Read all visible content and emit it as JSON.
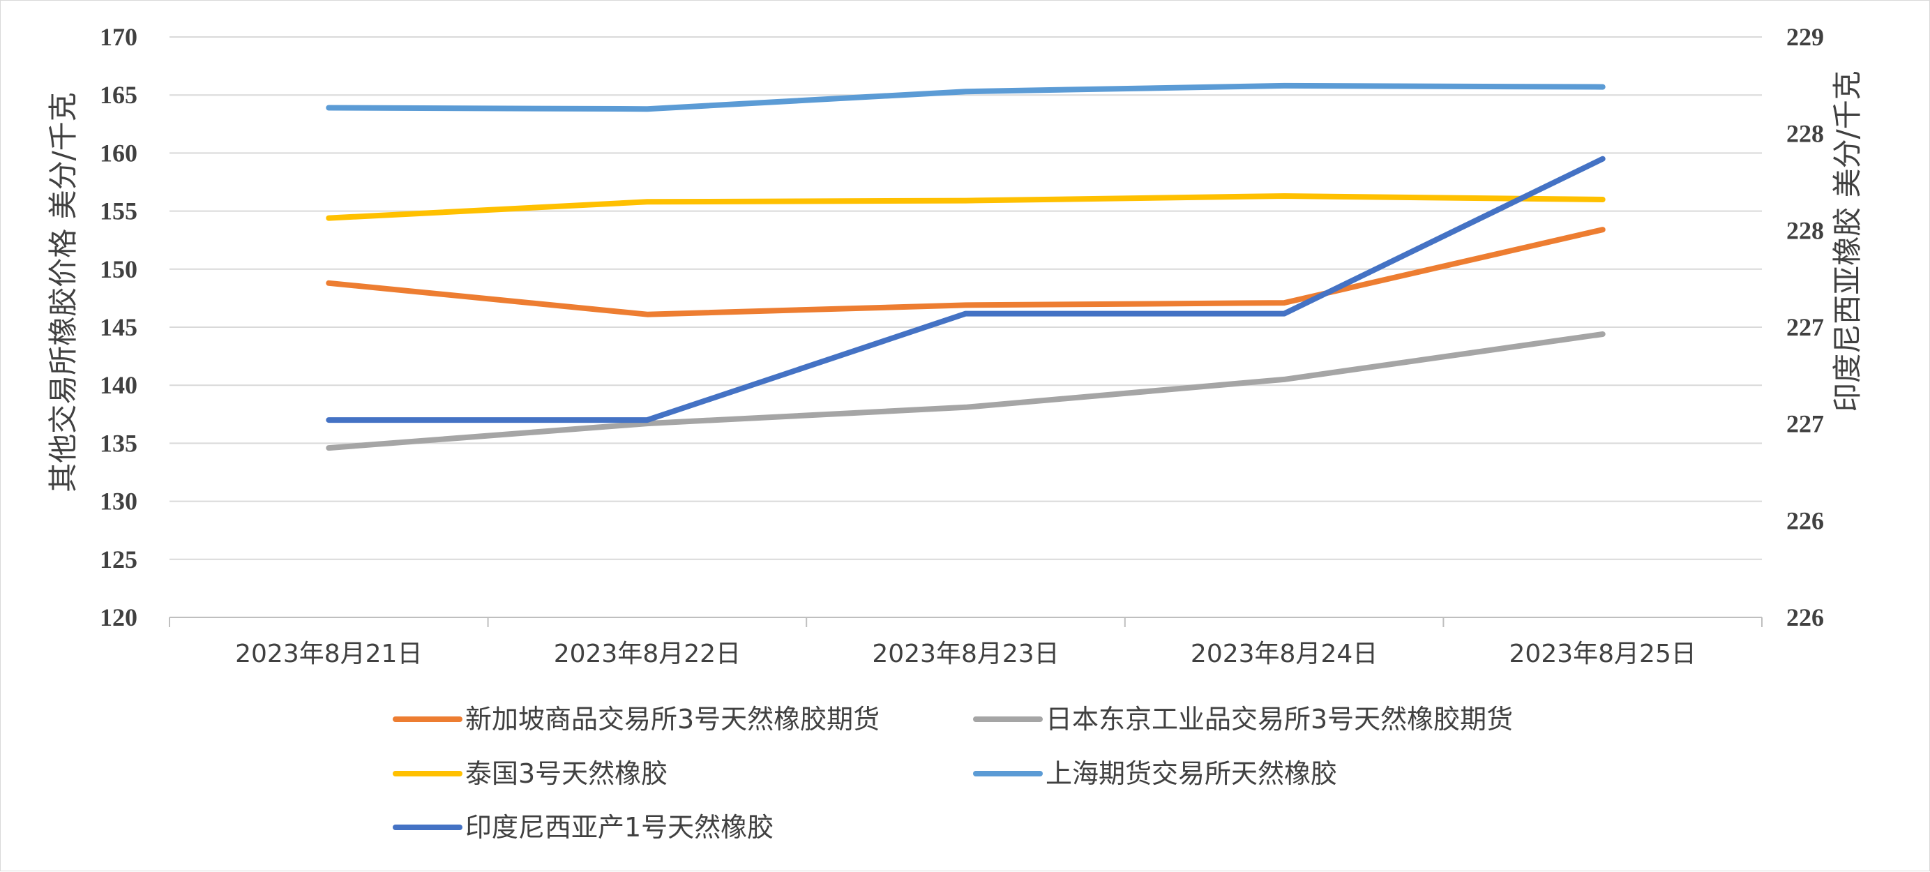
{
  "chart_data": {
    "type": "line",
    "title": "",
    "categories": [
      "2023年8月21日",
      "2023年8月22日",
      "2023年8月23日",
      "2023年8月24日",
      "2023年8月25日"
    ],
    "y_left": {
      "label": "其他交易所橡胶价格  美分/千克",
      "ylim": [
        120,
        170
      ],
      "ticks": [
        120,
        125,
        130,
        135,
        140,
        145,
        150,
        155,
        160,
        165,
        170
      ],
      "tick_labels": [
        "120",
        "125",
        "130",
        "135",
        "140",
        "145",
        "150",
        "155",
        "160",
        "165",
        "170"
      ]
    },
    "y_right": {
      "label": "印度尼西亚橡胶  美分/千克",
      "ylim": [
        226,
        229
      ],
      "ticks": [
        226,
        226.5,
        227,
        227.5,
        228,
        228.5,
        229
      ],
      "tick_labels": [
        "226",
        "226",
        "227",
        "227",
        "228",
        "228",
        "229"
      ]
    },
    "grid": true,
    "legend_position": "bottom",
    "series": [
      {
        "name": "新加坡商品交易所3号天然橡胶期货",
        "axis": "left",
        "color": "#ED7D31",
        "values": [
          148.8,
          146.1,
          146.9,
          147.1,
          153.4
        ]
      },
      {
        "name": "日本东京工业品交易所3号天然橡胶期货",
        "axis": "left",
        "color": "#A5A5A5",
        "values": [
          134.6,
          136.7,
          138.1,
          140.5,
          144.4
        ]
      },
      {
        "name": "泰国3号天然橡胶",
        "axis": "left",
        "color": "#FFC000",
        "values": [
          154.4,
          155.8,
          155.9,
          156.3,
          156.0
        ]
      },
      {
        "name": "上海期货交易所天然橡胶",
        "axis": "left",
        "color": "#5B9BD5",
        "values": [
          163.9,
          163.8,
          165.3,
          165.8,
          165.7
        ]
      },
      {
        "name": "印度尼西亚产1号天然橡胶",
        "axis": "right",
        "color": "#4472C4",
        "values": [
          227.02,
          227.02,
          227.57,
          227.57,
          228.37
        ]
      }
    ]
  }
}
